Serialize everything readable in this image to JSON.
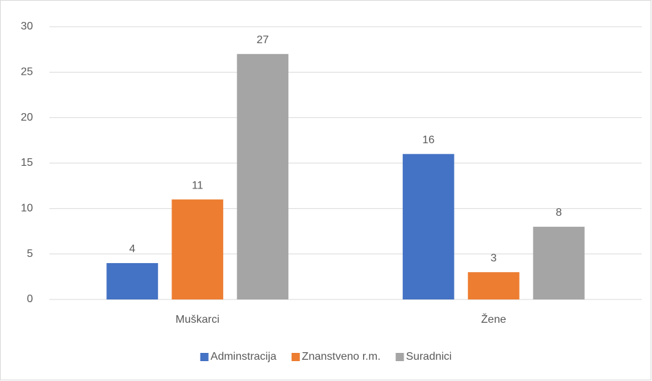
{
  "chart_data": {
    "type": "bar",
    "categories": [
      "Muškarci",
      "Žene"
    ],
    "series": [
      {
        "name": "Adminstracija",
        "color": "#4472c4",
        "values": [
          4,
          16
        ]
      },
      {
        "name": "Znanstveno r.m.",
        "color": "#ed7d31",
        "values": [
          11,
          3
        ]
      },
      {
        "name": "Suradnici",
        "color": "#a5a5a5",
        "values": [
          27,
          8
        ]
      }
    ],
    "ylim": [
      0,
      30
    ],
    "yticks": [
      0,
      5,
      10,
      15,
      20,
      25,
      30
    ],
    "grid": true,
    "legend": "bottom"
  }
}
